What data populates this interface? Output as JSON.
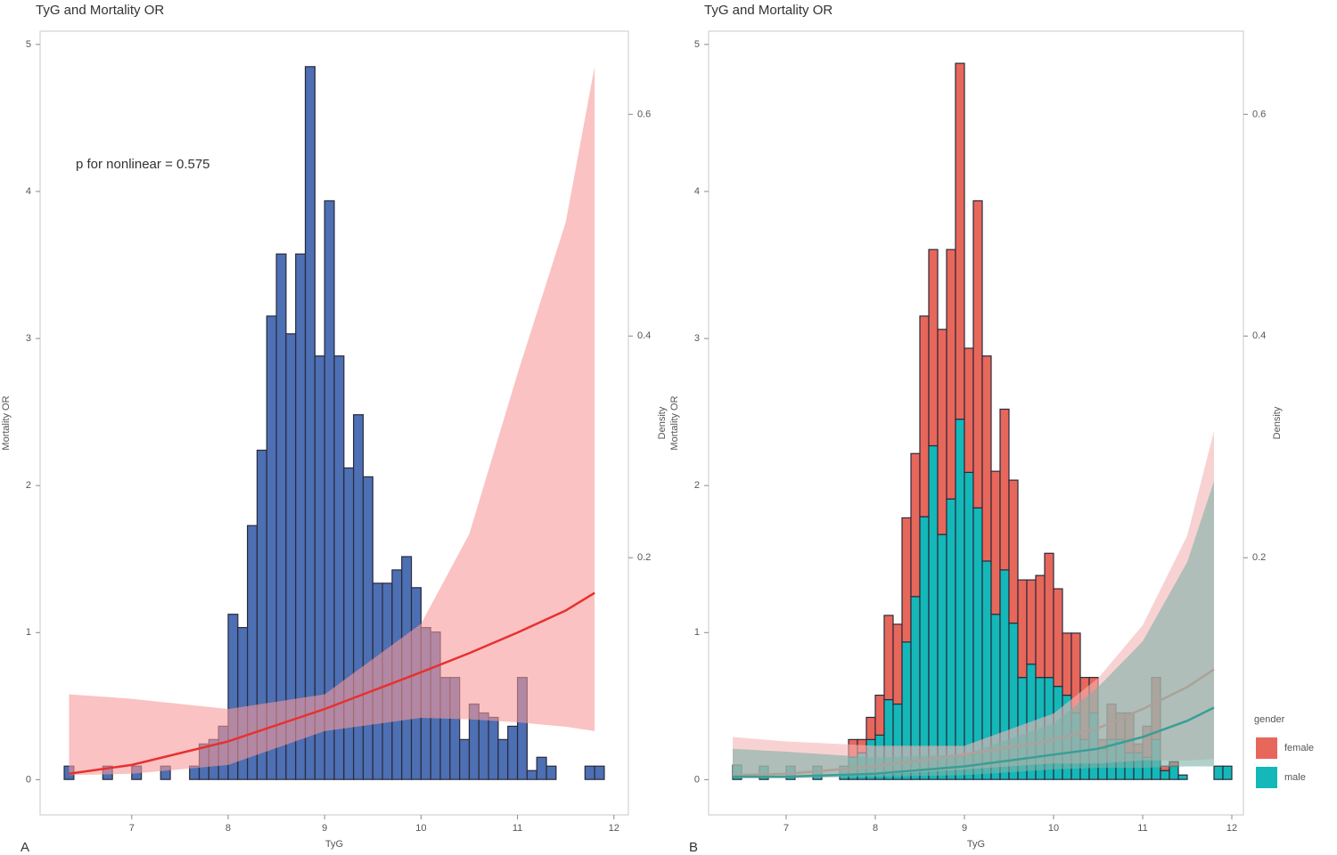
{
  "chart_data": [
    {
      "type": "histogram",
      "panel_label": "A",
      "title": "TyG and Mortality OR",
      "annotation": "p for nonlinear = 0.575",
      "xlabel": "TyG",
      "ylabel": "Mortality OR",
      "y2label": "Density",
      "xlim": [
        6.05,
        12.15
      ],
      "xticks": [
        7,
        8,
        9,
        10,
        11,
        12
      ],
      "ylim": [
        -0.24,
        5.09
      ],
      "yticks": [
        0,
        1,
        2,
        3,
        4,
        5
      ],
      "y2lim": [
        -0.032,
        0.675
      ],
      "y2ticks": [
        0.2,
        0.4,
        0.6
      ],
      "bins": [
        6.3,
        6.4,
        6.5,
        6.6,
        6.7,
        6.8,
        6.9,
        7.0,
        7.1,
        7.2,
        7.3,
        7.4,
        7.5,
        7.6,
        7.7,
        7.8,
        7.9,
        8.0,
        8.1,
        8.2,
        8.3,
        8.4,
        8.5,
        8.6,
        8.7,
        8.8,
        8.9,
        9.0,
        9.1,
        9.2,
        9.3,
        9.4,
        9.5,
        9.6,
        9.7,
        9.8,
        9.9,
        10.0,
        10.1,
        10.2,
        10.3,
        10.4,
        10.5,
        10.6,
        10.7,
        10.8,
        10.9,
        11.0,
        11.1,
        11.2,
        11.3,
        11.4,
        11.5,
        11.6,
        11.7,
        11.8,
        11.9
      ],
      "series": [
        {
          "color": "#4d6fb3",
          "values": [
            0.012,
            0,
            0,
            0,
            0.012,
            0,
            0,
            0.012,
            0,
            0,
            0.012,
            0,
            0,
            0.012,
            0.032,
            0.036,
            0.048,
            0.149,
            0.137,
            0.229,
            0.297,
            0.418,
            0.474,
            0.402,
            0.474,
            0.643,
            0.382,
            0.522,
            0.382,
            0.281,
            0.329,
            0.273,
            0.177,
            0.177,
            0.189,
            0.201,
            0.173,
            0.137,
            0.133,
            0.092,
            0.092,
            0.036,
            0.068,
            0.06,
            0.056,
            0.036,
            0.048,
            0.092,
            0.008,
            0.02,
            0.012,
            0,
            0,
            0,
            0.012,
            0.012
          ]
        }
      ],
      "fits": [
        {
          "color": "#e8302f",
          "band_color": "#f79a9a",
          "x": [
            6.35,
            7,
            8,
            9,
            10,
            10.5,
            11,
            11.5,
            11.8
          ],
          "values": [
            0.04,
            0.1,
            0.26,
            0.48,
            0.73,
            0.86,
            1.0,
            1.15,
            1.27
          ],
          "upper": [
            0.58,
            0.55,
            0.48,
            0.58,
            1.06,
            1.67,
            2.76,
            3.79,
            4.85
          ],
          "lower": [
            0.03,
            0.04,
            0.1,
            0.33,
            0.42,
            0.41,
            0.39,
            0.36,
            0.33
          ]
        }
      ]
    },
    {
      "type": "histogram",
      "panel_label": "B",
      "title": "TyG and Mortality OR",
      "xlabel": "TyG",
      "ylabel": "Mortality OR",
      "y2label": "Density",
      "legend_title": "gender",
      "xlim": [
        6.13,
        12.13
      ],
      "xticks": [
        7,
        8,
        9,
        10,
        11,
        12
      ],
      "ylim": [
        -0.24,
        5.09
      ],
      "yticks": [
        0,
        1,
        2,
        3,
        4,
        5
      ],
      "y2lim": [
        -0.032,
        0.675
      ],
      "y2ticks": [
        0.2,
        0.4,
        0.6
      ],
      "bins": [
        6.4,
        6.5,
        6.6,
        6.7,
        6.8,
        6.9,
        7.0,
        7.1,
        7.2,
        7.3,
        7.4,
        7.5,
        7.6,
        7.7,
        7.8,
        7.9,
        8.0,
        8.1,
        8.2,
        8.3,
        8.4,
        8.5,
        8.6,
        8.7,
        8.8,
        8.9,
        9.0,
        9.1,
        9.2,
        9.3,
        9.4,
        9.5,
        9.6,
        9.7,
        9.8,
        9.9,
        10.0,
        10.1,
        10.2,
        10.3,
        10.4,
        10.5,
        10.6,
        10.7,
        10.8,
        10.9,
        11.0,
        11.1,
        11.2,
        11.3,
        11.4,
        11.5,
        11.6,
        11.7,
        11.8,
        11.9,
        12.0
      ],
      "series": [
        {
          "name": "male",
          "color": "#14b8b8",
          "values": [
            0.013,
            0,
            0,
            0.012,
            0,
            0,
            0.012,
            0,
            0,
            0.012,
            0,
            0,
            0.012,
            0.02,
            0.024,
            0.036,
            0.04,
            0.072,
            0.068,
            0.124,
            0.165,
            0.237,
            0.301,
            0.221,
            0.253,
            0.325,
            0.277,
            0.245,
            0.197,
            0.149,
            0.189,
            0.141,
            0.092,
            0.104,
            0.092,
            0.092,
            0.084,
            0.076,
            0.06,
            0.036,
            0.06,
            0.028,
            0.036,
            0.036,
            0.024,
            0.024,
            0.02,
            0.036,
            0.008,
            0.012,
            0.004,
            0,
            0,
            0,
            0.012,
            0.012
          ]
        },
        {
          "name": "female",
          "color": "#e7675b",
          "values": [
            0,
            0,
            0,
            0,
            0,
            0,
            0,
            0,
            0,
            0,
            0,
            0,
            0,
            0.016,
            0.012,
            0.02,
            0.036,
            0.076,
            0.072,
            0.112,
            0.129,
            0.181,
            0.177,
            0.185,
            0.225,
            0.321,
            0.112,
            0.277,
            0.185,
            0.129,
            0.145,
            0.129,
            0.088,
            0.076,
            0.092,
            0.112,
            0.088,
            0.056,
            0.072,
            0.056,
            0.032,
            0.008,
            0.032,
            0.024,
            0.036,
            0.008,
            0.028,
            0.056,
            0.004,
            0.004,
            0,
            0,
            0,
            0,
            0,
            0
          ]
        }
      ],
      "fits": [
        {
          "color": "#f08a8a",
          "band_color": "#f4b4b4",
          "x": [
            6.4,
            7,
            8,
            9,
            10,
            10.5,
            11,
            11.5,
            11.8
          ],
          "values": [
            0.03,
            0.04,
            0.09,
            0.17,
            0.27,
            0.35,
            0.48,
            0.63,
            0.75
          ],
          "upper": [
            0.29,
            0.26,
            0.23,
            0.23,
            0.45,
            0.69,
            1.05,
            1.66,
            2.37
          ],
          "lower": [
            0.02,
            0.02,
            0.03,
            0.07,
            0.11,
            0.11,
            0.13,
            0.13,
            0.14
          ]
        },
        {
          "color": "#3a9e96",
          "band_color": "#7fb0a6",
          "x": [
            6.4,
            7,
            8,
            9,
            10,
            10.5,
            11,
            11.5,
            11.8
          ],
          "values": [
            0.02,
            0.02,
            0.04,
            0.09,
            0.17,
            0.21,
            0.29,
            0.4,
            0.49
          ],
          "upper": [
            0.21,
            0.19,
            0.15,
            0.17,
            0.38,
            0.63,
            0.94,
            1.48,
            2.03
          ],
          "lower": [
            0.01,
            0.01,
            0.02,
            0.03,
            0.07,
            0.08,
            0.08,
            0.09,
            0.09
          ]
        }
      ]
    }
  ]
}
